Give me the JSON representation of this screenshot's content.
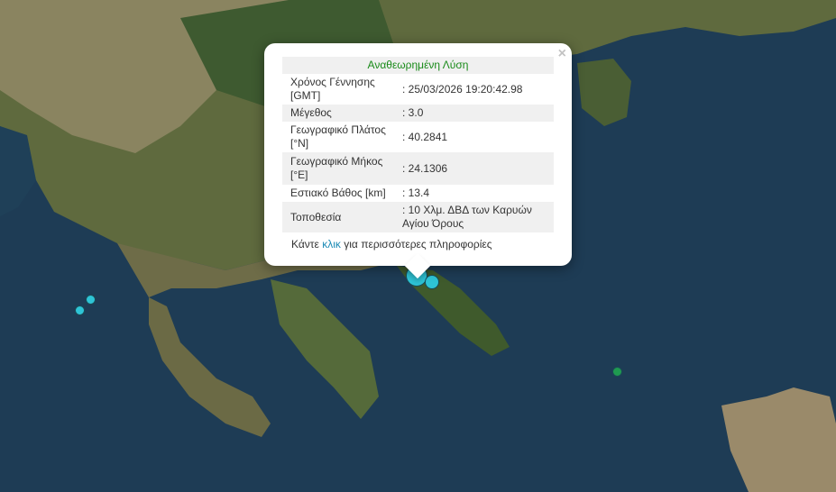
{
  "popup": {
    "title": "Αναθεωρημένη Λύση",
    "rows": [
      {
        "label": "Χρόνος Γέννησης [GMT]",
        "value": ": 25/03/2026 19:20:42.98"
      },
      {
        "label": "Μέγεθος",
        "value": ": 3.0"
      },
      {
        "label": "Γεωγραφικό Πλάτος [°N]",
        "value": ": 40.2841"
      },
      {
        "label": "Γεωγραφικό Μήκος [°E]",
        "value": ": 24.1306"
      },
      {
        "label": "Εστιακό Βάθος [km]",
        "value": ": 13.4"
      },
      {
        "label": "Τοποθεσία",
        "value": ": 10 Χλμ. ΔΒΔ των Καρυών Αγίου Όρους"
      }
    ],
    "more_prefix": "Κάντε",
    "more_link": "κλικ",
    "more_suffix": "για περισσότερες πληροφορίες",
    "close": "×"
  },
  "markers": [
    {
      "color": "#2ec4d6",
      "type": "selected"
    },
    {
      "color": "#2ec4d6",
      "type": "event"
    },
    {
      "color": "#2ec4d6",
      "type": "event"
    },
    {
      "color": "#2ec4d6",
      "type": "event"
    },
    {
      "color": "#1f9a50",
      "type": "event"
    }
  ]
}
